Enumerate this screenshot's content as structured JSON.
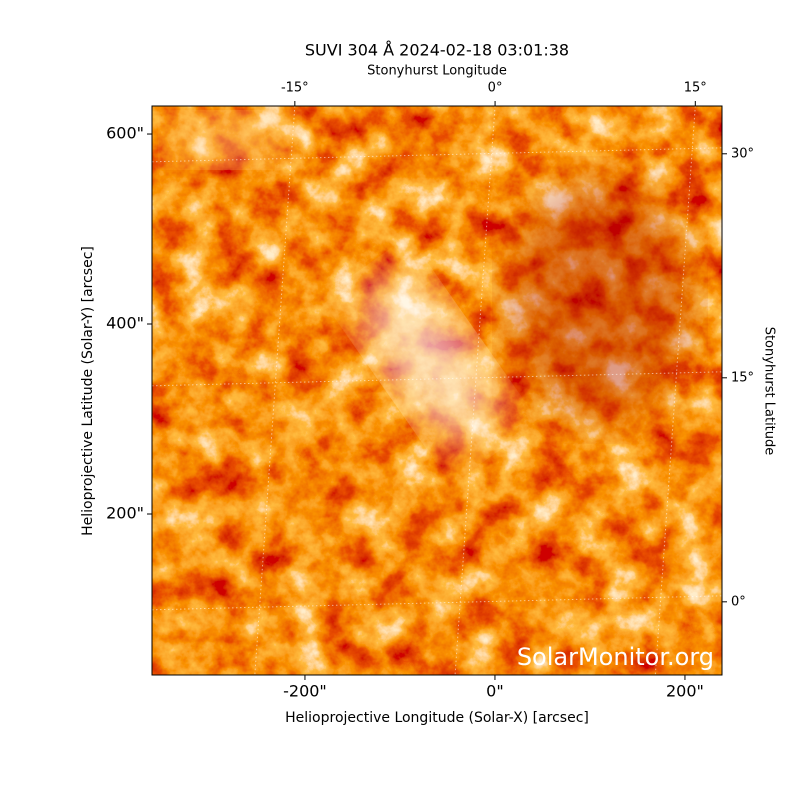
{
  "chart_data": {
    "type": "image",
    "title": "SUVI 304 Å 2024-02-18 03:01:38",
    "xlabel": "Helioprojective Longitude (Solar-X) [arcsec]",
    "ylabel": "Helioprojective Latitude (Solar-Y) [arcsec]",
    "x2label": "Stonyhurst Longitude",
    "y2label": "Stonyhurst Latitude",
    "watermark": "SolarMonitor.org",
    "xlim": [
      -361,
      239
    ],
    "ylim": [
      30.5,
      629.5
    ],
    "xticks": [
      {
        "value": -200,
        "label": "-200\""
      },
      {
        "value": 0,
        "label": "0\""
      },
      {
        "value": 200,
        "label": "200\""
      }
    ],
    "yticks": [
      {
        "value": 200,
        "label": "200\""
      },
      {
        "value": 400,
        "label": "400\""
      },
      {
        "value": 600,
        "label": "600\""
      }
    ],
    "x2lim": [
      -25.7,
      17.0
    ],
    "x2ticks": [
      {
        "value": -15,
        "label": "-15°"
      },
      {
        "value": 0,
        "label": "0°"
      },
      {
        "value": 15,
        "label": "15°"
      }
    ],
    "y2lim": [
      -4.9,
      33.2
    ],
    "y2ticks": [
      {
        "value": 0,
        "label": "0°"
      },
      {
        "value": 15,
        "label": "15°"
      },
      {
        "value": 30,
        "label": "30°"
      }
    ],
    "grid": true
  }
}
